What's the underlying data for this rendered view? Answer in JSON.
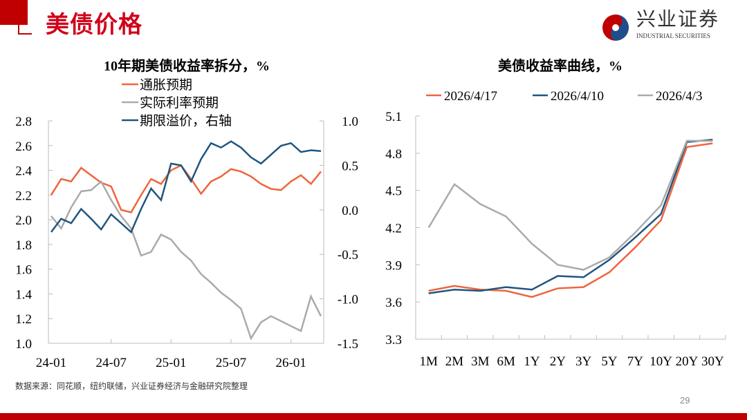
{
  "header": {
    "title": "美债价格",
    "logo_cn": "兴业证券",
    "logo_en": "INDUSTRIAL SECURITIES"
  },
  "footer": {
    "source": "数据来源：同花顺，纽约联储，兴业证券经济与金融研究院整理",
    "page": "29"
  },
  "colors": {
    "red": "#f0643c",
    "gray": "#aaaaaa",
    "blue": "#1f557f",
    "brand": "#c00000"
  },
  "chart_data": [
    {
      "type": "line",
      "title": "10年期美债收益率拆分，%",
      "x": [
        "24-01",
        "24-02",
        "24-03",
        "24-04",
        "24-05",
        "24-06",
        "24-07",
        "24-08",
        "24-09",
        "24-10",
        "24-11",
        "24-12",
        "25-01",
        "25-02",
        "25-03",
        "25-04",
        "25-05",
        "25-06",
        "25-07",
        "25-08",
        "25-09",
        "25-10",
        "25-11",
        "25-12",
        "26-01",
        "26-02",
        "26-03",
        "26-04"
      ],
      "xticks": [
        "24-01",
        "24-07",
        "25-01",
        "25-07",
        "26-01"
      ],
      "yticks_left": [
        "2.8",
        "2.6",
        "2.4",
        "2.2",
        "2.0",
        "1.8",
        "1.6",
        "1.4",
        "1.2",
        "1.0"
      ],
      "yticks_right": [
        "1.0",
        "0.5",
        "0.0",
        "-0.5",
        "-1.0",
        "-1.5"
      ],
      "ylim_left": [
        1.0,
        2.8
      ],
      "ylim_right": [
        -1.5,
        1.0
      ],
      "legend": "top",
      "series": [
        {
          "name": "通胀预期",
          "axis": "left",
          "color": "#f0643c",
          "values": [
            2.2,
            2.33,
            2.31,
            2.42,
            2.36,
            2.3,
            2.27,
            2.08,
            2.06,
            2.2,
            2.33,
            2.29,
            2.4,
            2.44,
            2.33,
            2.21,
            2.31,
            2.35,
            2.41,
            2.39,
            2.35,
            2.29,
            2.25,
            2.24,
            2.31,
            2.36,
            2.29,
            2.39
          ]
        },
        {
          "name": "实际利率预期",
          "axis": "left",
          "color": "#aaaaaa",
          "values": [
            2.03,
            1.93,
            2.1,
            2.23,
            2.24,
            2.31,
            2.16,
            2.03,
            1.93,
            1.71,
            1.74,
            1.88,
            1.84,
            1.74,
            1.67,
            1.56,
            1.49,
            1.41,
            1.35,
            1.28,
            1.04,
            1.17,
            1.22,
            1.18,
            1.14,
            1.1,
            1.38,
            1.22
          ]
        },
        {
          "name": "期限溢价，右轴",
          "axis": "right",
          "color": "#1f557f",
          "values": [
            -0.25,
            -0.1,
            -0.15,
            0.01,
            -0.1,
            -0.22,
            -0.05,
            -0.15,
            -0.25,
            0.01,
            0.24,
            0.11,
            0.52,
            0.5,
            0.32,
            0.57,
            0.75,
            0.7,
            0.77,
            0.7,
            0.59,
            0.52,
            0.62,
            0.72,
            0.75,
            0.65,
            0.67,
            0.66
          ]
        }
      ]
    },
    {
      "type": "line",
      "title": "美债收益率曲线，%",
      "categories": [
        "1M",
        "2M",
        "3M",
        "6M",
        "1Y",
        "2Y",
        "3Y",
        "5Y",
        "7Y",
        "10Y",
        "20Y",
        "30Y"
      ],
      "yticks": [
        "5.1",
        "4.8",
        "4.5",
        "4.2",
        "3.9",
        "3.6",
        "3.3"
      ],
      "ylim": [
        3.3,
        5.1
      ],
      "legend": "top",
      "series": [
        {
          "name": "2026/4/17",
          "color": "#f0643c",
          "values": [
            3.69,
            3.73,
            3.7,
            3.69,
            3.64,
            3.71,
            3.72,
            3.84,
            4.04,
            4.26,
            4.85,
            4.88
          ]
        },
        {
          "name": "2026/4/10",
          "color": "#1f557f",
          "values": [
            3.67,
            3.7,
            3.69,
            3.72,
            3.7,
            3.81,
            3.8,
            3.94,
            4.12,
            4.31,
            4.89,
            4.91
          ]
        },
        {
          "name": "2026/4/3",
          "color": "#aaaaaa",
          "values": [
            4.2,
            4.55,
            4.39,
            4.29,
            4.07,
            3.9,
            3.86,
            3.96,
            4.16,
            4.38,
            4.9,
            4.9
          ]
        }
      ]
    }
  ]
}
